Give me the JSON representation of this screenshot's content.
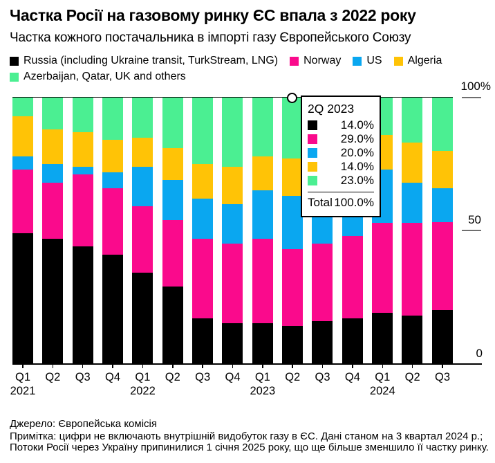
{
  "header": {
    "title": "Частка Росії на газовому ринку ЄС впала з 2022 року",
    "subtitle": "Частка кожного постачальника в імпорті газу Європейського Союзу"
  },
  "colors": {
    "russia": "#000000",
    "norway": "#fa0a8c",
    "us": "#0aa7f0",
    "algeria": "#ffc306",
    "others": "#4bef92",
    "axis_tick_gray": "#6e6e6e"
  },
  "legend": [
    {
      "label": "Russia (including Ukraine transit, TurkStream, LNG)",
      "color": "#000000"
    },
    {
      "label": "Norway",
      "color": "#fa0a8c"
    },
    {
      "label": "US",
      "color": "#0aa7f0"
    },
    {
      "label": "Algeria",
      "color": "#ffc306"
    },
    {
      "label": "Azerbaijan, Qatar, UK and others",
      "color": "#4bef92"
    }
  ],
  "chart_data": {
    "type": "bar",
    "stacked": true,
    "unit": "%",
    "ylim": [
      0,
      100
    ],
    "y_ticks": [
      "100%",
      "50",
      "0"
    ],
    "categories": [
      "Q1 2021",
      "Q2 2021",
      "Q3 2021",
      "Q4 2021",
      "Q1 2022",
      "Q2 2022",
      "Q3 2022",
      "Q4 2022",
      "Q1 2023",
      "Q2 2023",
      "Q3 2023",
      "Q4 2023",
      "Q1 2024",
      "Q2 2024",
      "Q3 2024"
    ],
    "x_tick_labels": [
      "Q1",
      "Q2",
      "Q3",
      "Q4",
      "Q1",
      "Q2",
      "Q3",
      "Q4",
      "Q1",
      "Q2",
      "Q3",
      "Q4",
      "Q1",
      "Q2",
      "Q3"
    ],
    "year_labels": [
      {
        "label": "2021",
        "bar": 0
      },
      {
        "label": "2022",
        "bar": 4
      },
      {
        "label": "2023",
        "bar": 8
      },
      {
        "label": "2024",
        "bar": 12
      }
    ],
    "series": [
      {
        "name": "Russia (including Ukraine transit, TurkStream, LNG)",
        "color": "#000000",
        "values": [
          49,
          47,
          44,
          41,
          34,
          29,
          17,
          15,
          15,
          14,
          16,
          17,
          19,
          18,
          20
        ]
      },
      {
        "name": "Norway",
        "color": "#fa0a8c",
        "values": [
          24,
          21,
          27,
          25,
          25,
          25,
          30,
          30,
          32,
          29,
          29,
          31,
          34,
          35,
          33
        ]
      },
      {
        "name": "US",
        "color": "#0aa7f0",
        "values": [
          5,
          7,
          3,
          6,
          15,
          15,
          15,
          15,
          18,
          20,
          19,
          19,
          20,
          15,
          13
        ]
      },
      {
        "name": "Algeria",
        "color": "#ffc306",
        "values": [
          15,
          13,
          13,
          12,
          11,
          12,
          13,
          14,
          13,
          14,
          13,
          13,
          13,
          15,
          14
        ]
      },
      {
        "name": "Azerbaijan, Qatar, UK and others",
        "color": "#4bef92",
        "values": [
          7,
          12,
          13,
          16,
          15,
          19,
          25,
          26,
          22,
          23,
          23,
          20,
          14,
          17,
          20
        ]
      }
    ]
  },
  "tooltip": {
    "title": "2Q 2023",
    "hovered_bar_index": 9,
    "rows": [
      {
        "color": "#000000",
        "value": "14.0%"
      },
      {
        "color": "#fa0a8c",
        "value": "29.0%"
      },
      {
        "color": "#0aa7f0",
        "value": "20.0%"
      },
      {
        "color": "#ffc306",
        "value": "14.0%"
      },
      {
        "color": "#4bef92",
        "value": "23.0%"
      }
    ],
    "total_label": "Total",
    "total_value": "100.0%"
  },
  "footer": {
    "source": "Джерело: Європейська комісія",
    "note": "Примітка: цифри не включають внутрішній видобуток газу в ЄС. Дані станом на 3 квартал 2024 р.; Потоки Росії через Україну припинилися 1 січня 2025 року, що ще більше зменшило її частку ринку."
  }
}
